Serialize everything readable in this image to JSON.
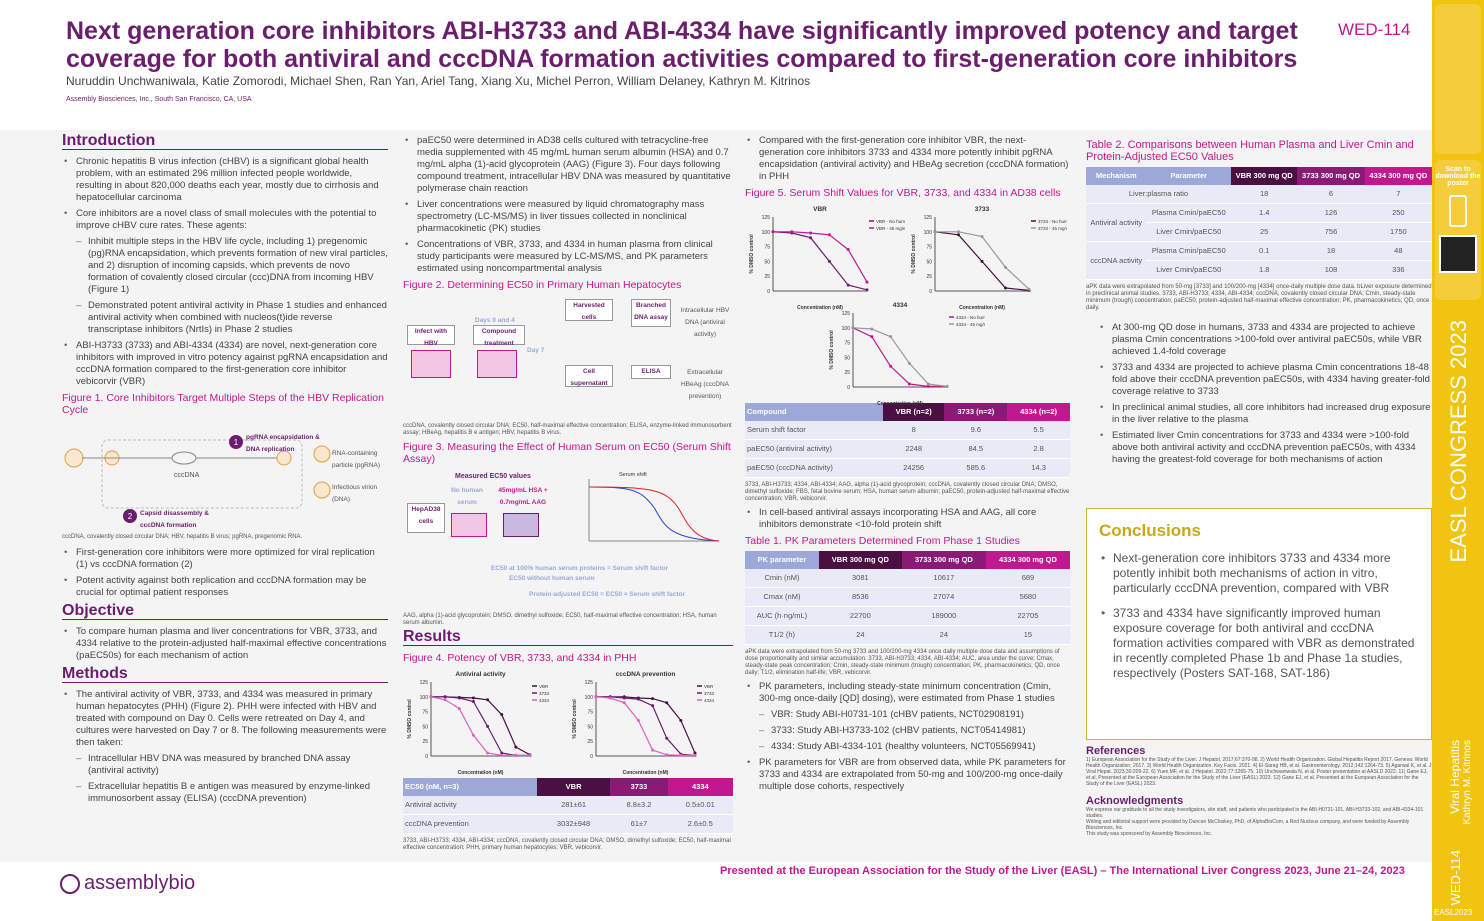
{
  "header": {
    "title": "Next generation core inhibitors ABI-H3733 and ABI-4334 have significantly improved potency and target coverage for both antiviral and cccDNA formation activities compared to first-generation core inhibitors",
    "poster_code": "WED-114",
    "authors": "Nuruddin Unchwaniwala, Katie Zomorodi, Michael Shen, Ran Yan, Ariel Tang, Xiang Xu, Michel Perron, William Delaney, Kathryn M. Kitrinos",
    "affiliation": "Assembly Biosciences, Inc., South San Francisco, CA, USA"
  },
  "intro": {
    "title": "Introduction",
    "b1": "Chronic hepatitis B virus infection (cHBV) is a significant global health problem, with an estimated 296 million infected people worldwide, resulting in about 820,000 deaths each year, mostly due to cirrhosis and hepatocellular carcinoma",
    "b2": "Core inhibitors are a novel class of small molecules with the potential to improve cHBV cure rates. These agents:",
    "s1": "Inhibit multiple steps in the HBV life cycle, including 1) pregenomic (pg)RNA encapsidation, which prevents formation of new viral particles, and 2) disruption of incoming capsids, which prevents de novo formation of covalently closed circular (ccc)DNA from incoming HBV (Figure 1)",
    "s2": "Demonstrated potent antiviral activity in Phase 1 studies and enhanced antiviral activity when combined with nucleos(t)ide reverse transcriptase inhibitors (NrtIs) in Phase 2 studies",
    "b3": "ABI-H3733 (3733) and ABI-4334 (4334) are novel, next-generation core inhibitors with improved in vitro potency against pgRNA encapsidation and cccDNA formation compared to the first-generation core inhibitor vebicorvir (VBR)"
  },
  "fig1": {
    "title": "Figure 1. Core Inhibitors Target Multiple Steps of the HBV Replication Cycle",
    "l1": "pgRNA encapsidation & DNA replication",
    "l2": "Capsid disassembly & cccDNA formation",
    "l3": "cccDNA",
    "l4": "RNA-containing particle (pgRNA)",
    "l5": "Infectious virion (DNA)",
    "caption": "cccDNA, covalently closed circular DNA; HBV, hepatitis B virus; pgRNA, pregenomic RNA.",
    "b1": "First-generation core inhibitors were more optimized for viral replication (1) vs cccDNA formation (2)",
    "b2": "Potent activity against both replication and cccDNA formation may be crucial for optimal patient responses"
  },
  "objective": {
    "title": "Objective",
    "b1": "To compare human plasma and liver concentrations for VBR, 3733, and 4334 relative to the protein-adjusted half-maximal effective concentrations (paEC50s) for each mechanism of action"
  },
  "methods": {
    "title": "Methods",
    "b1": "The antiviral activity of VBR, 3733, and 4334 was measured in primary human hepatocytes (PHH) (Figure 2). PHH were infected with HBV and treated with compound on Day 0. Cells were retreated on Day 4, and cultures were harvested on Day 7 or 8. The following measurements were then taken:",
    "s1": "Intracellular HBV DNA was measured by branched DNA assay (antiviral activity)",
    "s2": "Extracellular hepatitis B e antigen was measured by enzyme-linked immunosorbent assay (ELISA) (cccDNA prevention)",
    "b2": "paEC50 were determined in AD38 cells cultured with tetracycline-free media supplemented with 45 mg/mL human serum albumin (HSA) and 0.7 mg/mL alpha (1)-acid glycoprotein (AAG) (Figure 3). Four days following compound treatment, intracellular HBV DNA was measured by quantitative polymerase chain reaction",
    "b3": "Liver concentrations were measured by liquid chromatography mass spectrometry (LC-MS/MS) in liver tissues collected in nonclinical pharmacokinetic (PK) studies",
    "b4": "Concentrations of VBR, 3733, and 4334 in human plasma from clinical study participants were measured by LC-MS/MS, and PK parameters estimated using noncompartmental analysis"
  },
  "fig2": {
    "title": "Figure 2. Determining EC50 in Primary Human Hepatocytes",
    "infect": "Infect with HBV",
    "days": "Days 0 and 4",
    "compound": "Compound treatment",
    "day7": "Day 7",
    "harvested": "Harvested cells",
    "branched": "Branched DNA assay",
    "intra": "Intracellular HBV DNA (antiviral activity)",
    "cell_sup": "Cell supernatant",
    "elisa": "ELISA",
    "extra": "Extracellular HBeAg (cccDNA prevention)",
    "caption": "cccDNA, covalently closed circular DNA; EC50, half-maximal effective concentration; ELISA, enzyme-linked immunosorbent assay; HBeAg, hepatitis B e antigen; HBV, hepatitis B virus."
  },
  "fig3": {
    "title": "Figure 3. Measuring the Effect of Human Serum on EC50 (Serum Shift Assay)",
    "measured": "Measured EC50 values",
    "no_serum": "No human serum",
    "with_serum": "45mg/mL HSA + 0.7mg/mL AAG",
    "cells": "HepAD38 cells",
    "chart_title": "Serum shift",
    "formula1": "EC50 at 100% human serum proteins = Serum shift factor",
    "formula1b": "EC50 without human serum",
    "formula2": "Protein-adjusted EC50 = EC50 × Serum shift factor",
    "caption": "AAG, alpha (1)-acid glycoprotein; DMSO, dimethyl sulfoxide; EC50, half-maximal effective concentration; HSA, human serum albumin."
  },
  "results": {
    "title": "Results",
    "fig4_title": "Figure 4. Potency of VBR, 3733, and 4334 in PHH",
    "fig4_caption": "3733, ABI-H3733; 4334, ABI-4334; cccDNA, covalently closed circular DNA; DMSO, dimethyl sulfoxide; EC50, half-maximal effective concentration; PHH, primary human hepatocytes; VBR, vebicorvir."
  },
  "fig4_table": {
    "headers": [
      "EC50 (nM, n=3)",
      "VBR",
      "3733",
      "4334"
    ],
    "rows": [
      [
        "Antiviral activity",
        "281±61",
        "8.8±3.2",
        "0.5±0.01"
      ],
      [
        "cccDNA prevention",
        "3032±948",
        "61±7",
        "2.6±0.5"
      ]
    ]
  },
  "col3": {
    "b1": "Compared with the first-generation core inhibitor VBR, the next-generation core inhibitors 3733 and 4334 more potently inhibit pgRNA encapsidation (antiviral activity) and HBeAg secretion (cccDNA formation) in PHH",
    "fig5_title": "Figure 5. Serum Shift Values for VBR, 3733, and 4334 in AD38 cells",
    "fig5_caption": "3733, ABI-H3733; 4334, ABI-4334; AAG, alpha (1)-acid glycoprotein; cccDNA, covalently closed circular DNA; DMSO, dimethyl sulfoxide; FBS, fetal bovine serum; HSA, human serum albumin; paEC50, protein-adjusted half-maximal effective concentration; VBR, vebicorvir.",
    "b2": "In cell-based antiviral assays incorporating HSA and AAG, all core inhibitors demonstrate <10-fold protein shift",
    "table1_title": "Table 1. PK Parameters Determined From Phase 1 Studies",
    "table1_caption": "aPK data were extrapolated from 50-mg 3733 and 100/200-mg 4334 once daily multiple dose data and assumptions of dose proportionality and similar accumulation. 3733, ABI-H3733; 4334, ABI-4334; AUC, area under the curve; Cmax, steady-state peak concentration; Cmin, steady-state minimum (trough) concentration; PK, pharmacokinetics; QD, once daily; T1/2, elimination half-life; VBR, vebicorvir.",
    "b3": "PK parameters, including steady-state minimum concentration (Cmin, 300-mg once-daily [QD] dosing), were estimated from Phase 1 studies",
    "s1": "VBR: Study ABI-H0731-101 (cHBV patients, NCT02908191)",
    "s2": "3733: Study ABI-H3733-102 (cHBV patients, NCT05414981)",
    "s3": "4334: Study ABI-4334-101 (healthy volunteers, NCT05569941)",
    "b4": "PK parameters for VBR are from observed data, while PK parameters for 3733 and 4334 are extrapolated from 50-mg and 100/200-mg once-daily multiple dose cohorts, respectively"
  },
  "fig5_table": {
    "headers": [
      "Compound",
      "VBR (n=2)",
      "3733 (n=2)",
      "4334 (n=2)"
    ],
    "rows": [
      [
        "Serum shift factor",
        "8",
        "9.6",
        "5.5"
      ],
      [
        "paEC50 (antiviral activity)",
        "2248",
        "84.5",
        "2.8"
      ],
      [
        "paEC50 (cccDNA activity)",
        "24256",
        "585.6",
        "14.3"
      ]
    ]
  },
  "table1": {
    "headers": [
      "PK parameter",
      "VBR 300 mg QD",
      "3733 300 mg QD",
      "4334 300 mg QD"
    ],
    "rows": [
      [
        "Cmin (nM)",
        "3081",
        "10617",
        "689"
      ],
      [
        "Cmax (nM)",
        "8536",
        "27074",
        "5680"
      ],
      [
        "AUC (h·ng/mL)",
        "22700",
        "189000",
        "22705"
      ],
      [
        "T1/2 (h)",
        "24",
        "24",
        "15"
      ]
    ]
  },
  "table2": {
    "title": "Table 2. Comparisons between Human Plasma and Liver Cmin and Protein-Adjusted EC50 Values",
    "headers": [
      "Mechanism",
      "Parameter",
      "VBR 300 mg QD",
      "3733 300 mg QD",
      "4334 300 mg QD"
    ],
    "ratio_label": "Liver:plasma ratio",
    "ratio": [
      "18",
      "6",
      "7"
    ],
    "antiviral": "Antiviral activity",
    "cccdna": "cccDNA activity",
    "p1": "Plasma Cmin/paEC50",
    "p2": "Liver Cmin/paEC50",
    "rows": [
      [
        "1.4",
        "126",
        "250"
      ],
      [
        "25",
        "756",
        "1750"
      ],
      [
        "0.1",
        "18",
        "48"
      ],
      [
        "1.8",
        "108",
        "336"
      ]
    ],
    "caption": "aPK data were extrapolated from 50-mg [3733] and 100/200-mg [4334] once-daily multiple dose data. bLiver exposure determined in preclinical animal studies. 3733, ABI-H3733; 4334, ABI-4334; cccDNA, covalently closed circular DNA; Cmin, steady-state minimum (trough) concentration; paEC50, protein-adjusted half-maximal effective concentration; PK, pharmacokinetics; QD, once daily."
  },
  "col4": {
    "b1": "At 300-mg QD dose in humans, 3733 and 4334 are projected to achieve plasma Cmin concentrations >100-fold over antiviral paEC50s, while VBR achieved 1.4-fold coverage",
    "b2": "3733 and 4334 are projected to achieve plasma Cmin concentrations 18-48 fold above their cccDNA prevention paEC50s, with 4334 having greater-fold coverage relative to 3733",
    "b3": "In preclinical animal studies, all core inhibitors had increased drug exposure in the liver relative to the plasma",
    "b4": "Estimated liver Cmin concentrations for 3733 and 4334 were >100-fold above both antiviral activity and cccDNA prevention paEC50s, with 4334 having the greatest-fold coverage for both mechanisms of action"
  },
  "conclusions": {
    "title": "Conclusions",
    "b1": "Next-generation core inhibitors 3733 and 4334 more potently inhibit both mechanisms of action in vitro, particularly cccDNA prevention, compared with VBR",
    "b2": "3733 and 4334 have significantly improved human exposure coverage for both antiviral and cccDNA formation activities compared with VBR as demonstrated in recently completed Phase 1b and Phase 1a studies, respectively (Posters SAT-168, SAT-186)"
  },
  "references": {
    "title": "References",
    "text": "1) European Association for the Study of the Liver. J Hepatol. 2017;67:370-98. 2) World Health Organization. Global Hepatitis Report 2017. Geneva: World Health Organization; 2017. 3) World Health Organization. Key Facts. 2021. 4) El-Sarag HB, et al. Gastroenterology. 2012;142:1264-73. 5) Agarwal K, et al. J Viral Hepat. 2023;30:209-22. 6) Yuen MF, et al. J Hepatol. 2022;77:1265-75. 10) Unchwaniwala N, et al. Poster presentation at AASLD 2022. 11) Gane EJ, et al. Presented at the European Association for the Study of the Liver (EASL) 2023. 12) Gane EJ, et al. Presented at the European Association for the Study of the Liver (EASL) 2023."
  },
  "ack": {
    "title": "Acknowledgments",
    "t1": "We express our gratitude to all the study investigators, site staff, and patients who participated in the ABI-H0731-101, ABI-H3733-102, and ABI-4334-101 studies.",
    "t2": "Writing and editorial support were provided by Duncan McCloskey, PhD, of AlphaBioCom, a Red Nucleus company, and were funded by Assembly Biosciences, Inc.",
    "t3": "This study was sponsored by Assembly Biosciences, Inc."
  },
  "footer": {
    "text": "Presented at the European Association for the Study of the Liver (EASL) – The International Liver Congress 2023, June 21–24, 2023",
    "logo": "assemblybio"
  },
  "sidebar": {
    "scan": "Scan to download the poster",
    "congress": "EASL CONGRESS 2023",
    "topic": "Viral Hepatitis",
    "author": "Kathryn M. Kitrinos",
    "code": "WED-114",
    "bottom": "EASL2023"
  },
  "chart_data": [
    {
      "type": "line",
      "title": "Antiviral activity",
      "xlabel": "Concentration (nM)",
      "ylabel": "% DMSO control",
      "ylim": [
        0,
        125
      ],
      "legend": "top-right",
      "series": [
        {
          "name": "VBR",
          "x": [
            0.001,
            0.01,
            0.1,
            1,
            10,
            100,
            1000,
            10000
          ],
          "values": [
            100,
            100,
            99,
            98,
            95,
            70,
            15,
            2
          ]
        },
        {
          "name": "3733",
          "x": [
            0.001,
            0.01,
            0.1,
            1,
            10,
            100,
            1000,
            10000
          ],
          "values": [
            100,
            100,
            98,
            92,
            50,
            5,
            1,
            1
          ]
        },
        {
          "name": "4334",
          "x": [
            0.001,
            0.01,
            0.1,
            1,
            10,
            100,
            1000,
            10000
          ],
          "values": [
            100,
            95,
            80,
            35,
            5,
            1,
            1,
            1
          ]
        }
      ]
    },
    {
      "type": "line",
      "title": "cccDNA prevention",
      "xlabel": "Concentration (nM)",
      "ylabel": "% DMSO control",
      "ylim": [
        0,
        125
      ],
      "legend": "top-right",
      "series": [
        {
          "name": "VBR",
          "x": [
            0.001,
            0.01,
            0.1,
            1,
            10,
            100,
            1000,
            10000
          ],
          "values": [
            100,
            100,
            100,
            98,
            97,
            90,
            60,
            5
          ]
        },
        {
          "name": "3733",
          "x": [
            0.001,
            0.01,
            0.1,
            1,
            10,
            100,
            1000,
            10000
          ],
          "values": [
            100,
            100,
            98,
            96,
            85,
            30,
            3,
            1
          ]
        },
        {
          "name": "4334",
          "x": [
            0.001,
            0.01,
            0.1,
            1,
            10,
            100,
            1000,
            10000
          ],
          "values": [
            100,
            98,
            90,
            60,
            10,
            2,
            1,
            1
          ]
        }
      ]
    },
    {
      "type": "line",
      "title": "VBR",
      "xlabel": "Concentration (nM)",
      "ylabel": "% DMSO control",
      "ylim": [
        0,
        125
      ],
      "series": [
        {
          "name": "VBR - No human serum",
          "x": [
            0.1,
            1,
            10,
            100,
            1000,
            10000
          ],
          "values": [
            100,
            98,
            90,
            50,
            10,
            2
          ]
        },
        {
          "name": "VBR - 45 mg/ml HSA + 0.7mg/ml AAG",
          "x": [
            0.1,
            1,
            10,
            100,
            1000,
            10000
          ],
          "values": [
            100,
            100,
            98,
            95,
            70,
            15
          ]
        }
      ]
    },
    {
      "type": "line",
      "title": "3733",
      "xlabel": "Concentration (nM)",
      "ylabel": "% DMSO control",
      "ylim": [
        0,
        125
      ],
      "series": [
        {
          "name": "3733 - No human serum",
          "x": [
            0.1,
            1,
            10,
            100,
            1000
          ],
          "values": [
            100,
            95,
            50,
            5,
            1
          ]
        },
        {
          "name": "3733 - 45 mg/ml HSA + 0.7mg/ml AAG",
          "x": [
            0.1,
            1,
            10,
            100,
            1000
          ],
          "values": [
            100,
            100,
            92,
            40,
            3
          ]
        }
      ]
    },
    {
      "type": "line",
      "title": "4334",
      "xlabel": "Concentration (nM)",
      "ylabel": "% DMSO control",
      "ylim": [
        0,
        125
      ],
      "series": [
        {
          "name": "4334 - No human serum",
          "x": [
            0.01,
            0.1,
            1,
            10,
            100,
            1000
          ],
          "values": [
            100,
            85,
            35,
            5,
            1,
            1
          ]
        },
        {
          "name": "4334 - 45 mg/ml HSA + 0.7 mg/ml AAG",
          "x": [
            0.01,
            0.1,
            1,
            10,
            100,
            1000
          ],
          "values": [
            100,
            98,
            85,
            40,
            5,
            1
          ]
        }
      ]
    }
  ]
}
